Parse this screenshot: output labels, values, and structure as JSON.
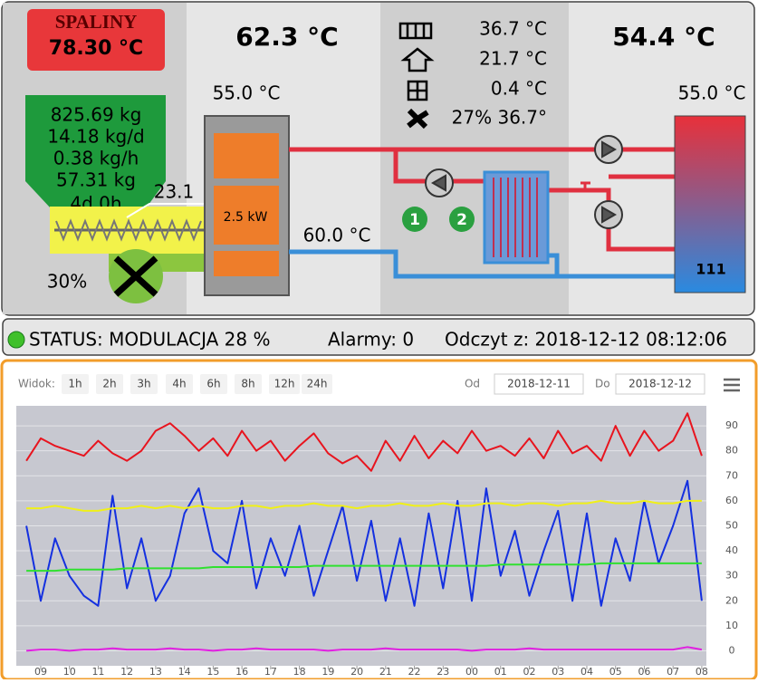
{
  "boiler": {
    "flue_label": "SPALINY",
    "flue_temp": "78.30 °C",
    "boiler_temp": "62.3 °C",
    "tank_temp": "54.4 °C",
    "boiler_set": "55.0 °C",
    "tank_set": "55.0 °C",
    "heating": [
      "36.7 °C",
      "21.7 °C",
      "0.4 °C",
      "27% 36.7°"
    ],
    "fuel": [
      "825.69 kg",
      "14.18 kg/d",
      "0.38 kg/h",
      "57.31 kg",
      "4d 0h"
    ],
    "feeder": "23.1",
    "fan": "30%",
    "power": "2.5 kW",
    "return_temp": "60.0 °C",
    "pumps": [
      "1",
      "2"
    ],
    "tank_label": "111"
  },
  "status": {
    "text": "STATUS: MODULACJA 28 %",
    "alarms": "Alarmy: 0",
    "reading": "Odczyt z: 2018-12-12 08:12:06"
  },
  "toolbar": {
    "view_label": "Widok:",
    "ranges": [
      "1h",
      "2h",
      "3h",
      "4h",
      "6h",
      "8h",
      "12h",
      "24h"
    ],
    "from_label": "Od",
    "from": "2018-12-11",
    "to_label": "Do",
    "to": "2018-12-12"
  },
  "chart_data": {
    "type": "line",
    "x": [
      8.5,
      9,
      9.5,
      10,
      10.5,
      11,
      11.5,
      12,
      12.5,
      13,
      13.5,
      14,
      14.5,
      15,
      15.5,
      16,
      16.5,
      17,
      17.5,
      18,
      18.5,
      19,
      19.5,
      20,
      20.5,
      21,
      21.5,
      22,
      22.5,
      23,
      23.5,
      24,
      24.5,
      25,
      25.5,
      26,
      26.5,
      27,
      27.5,
      28,
      28.5,
      29,
      29.5,
      30,
      30.5,
      31,
      31.5,
      32
    ],
    "series": [
      {
        "color": "#e8141e",
        "values": [
          76,
          85,
          82,
          80,
          78,
          84,
          79,
          76,
          80,
          88,
          91,
          86,
          80,
          85,
          78,
          88,
          80,
          84,
          76,
          82,
          87,
          79,
          75,
          78,
          72,
          84,
          76,
          86,
          77,
          84,
          79,
          88,
          80,
          82,
          78,
          85,
          77,
          88,
          79,
          82,
          76,
          90,
          78,
          88,
          80,
          84,
          95,
          78
        ]
      },
      {
        "color": "#1430e0",
        "values": [
          50,
          20,
          45,
          30,
          22,
          18,
          62,
          25,
          45,
          20,
          30,
          55,
          65,
          40,
          35,
          60,
          25,
          45,
          30,
          50,
          22,
          40,
          58,
          28,
          52,
          20,
          45,
          18,
          55,
          25,
          60,
          20,
          65,
          30,
          48,
          22,
          40,
          56,
          20,
          55,
          18,
          45,
          28,
          60,
          35,
          50,
          68,
          20
        ]
      },
      {
        "color": "#f0f018",
        "values": [
          57,
          57,
          58,
          57,
          56,
          56,
          57,
          57,
          58,
          57,
          58,
          57,
          58,
          57,
          57,
          58,
          58,
          57,
          58,
          58,
          59,
          58,
          58,
          57,
          58,
          58,
          59,
          58,
          58,
          59,
          58,
          58,
          59,
          59,
          58,
          59,
          59,
          58,
          59,
          59,
          60,
          59,
          59,
          60,
          59,
          59,
          60,
          60
        ]
      },
      {
        "color": "#30e030",
        "values": [
          32,
          32,
          32,
          32.5,
          32.5,
          32.5,
          32.5,
          33,
          33,
          33,
          33,
          33,
          33,
          33.5,
          33.5,
          33.5,
          33.5,
          33.5,
          33.5,
          33.5,
          34,
          34,
          34,
          34,
          34,
          34,
          34,
          34,
          34,
          34,
          34,
          34,
          34,
          34.5,
          34.5,
          34.5,
          34.5,
          34.5,
          34.5,
          34.5,
          35,
          35,
          35,
          35,
          35,
          35,
          35,
          35
        ]
      },
      {
        "color": "#e020e0",
        "values": [
          0,
          0.5,
          0.5,
          0,
          0.5,
          0.5,
          1,
          0.5,
          0.5,
          0.5,
          1,
          0.5,
          0.5,
          0,
          0.5,
          0.5,
          1,
          0.5,
          0.5,
          0.5,
          0.5,
          0,
          0.5,
          0.5,
          0.5,
          1,
          0.5,
          0.5,
          0.5,
          0.5,
          0.5,
          0,
          0.5,
          0.5,
          0.5,
          1,
          0.5,
          0.5,
          0.5,
          0.5,
          0.5,
          0.5,
          0.5,
          0.5,
          0.5,
          0.5,
          1.5,
          0.5
        ]
      }
    ],
    "xlim": [
      8.15,
      32.16
    ],
    "xticks": [
      {
        "value": 9,
        "label": "09"
      },
      10,
      11,
      12,
      13,
      14,
      15,
      16,
      17,
      18,
      19,
      20,
      21,
      22,
      23,
      {
        "value": 24,
        "label": "00"
      },
      {
        "value": 25,
        "label": "01"
      },
      {
        "value": 26,
        "label": "02"
      },
      {
        "value": 27,
        "label": "03"
      },
      {
        "value": 28,
        "label": "04"
      },
      {
        "value": 29,
        "label": "05"
      },
      {
        "value": 30,
        "label": "06"
      },
      {
        "value": 31,
        "label": "07"
      },
      {
        "value": 32,
        "label": "08"
      }
    ],
    "ylim": [
      -6,
      98
    ],
    "yticks": [
      0,
      10,
      20,
      30,
      40,
      50,
      60,
      70,
      80,
      90
    ],
    "grid": true
  }
}
